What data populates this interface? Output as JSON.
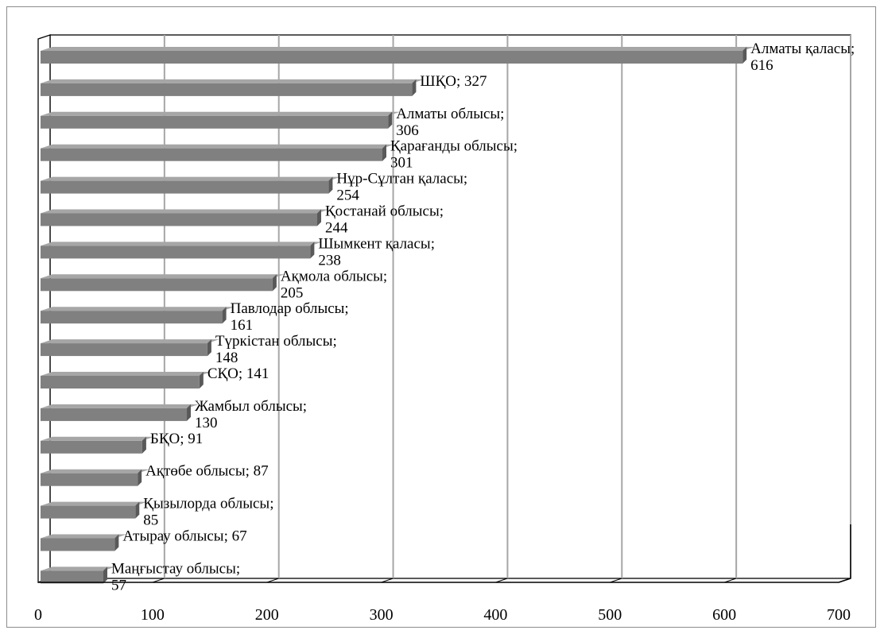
{
  "chart_data": {
    "type": "bar",
    "orientation": "horizontal",
    "style": "3d",
    "categories": [
      "Алматы қаласы",
      "ШҚО",
      "Алматы облысы",
      "Қарағанды облысы",
      "Нұр-Сұлтан қаласы",
      "Қостанай облысы",
      "Шымкент қаласы",
      "Ақмола облысы",
      "Павлодар облысы",
      "Түркістан облысы",
      "СҚО",
      "Жамбыл облысы",
      "БҚО",
      "Ақтөбе облысы",
      "Қызылорда облысы",
      "Атырау облысы",
      "Маңғыстау облысы"
    ],
    "values": [
      616,
      327,
      306,
      301,
      254,
      244,
      238,
      205,
      161,
      148,
      141,
      130,
      91,
      87,
      85,
      67,
      57
    ],
    "data_labels": [
      [
        "Алматы қаласы;",
        "616"
      ],
      [
        "ШҚО; 327"
      ],
      [
        "Алматы облысы;",
        "306"
      ],
      [
        "Қарағанды облысы;",
        "301"
      ],
      [
        "Нұр-Сұлтан қаласы;",
        "254"
      ],
      [
        "Қостанай облысы;",
        "244"
      ],
      [
        "Шымкент қаласы;",
        "238"
      ],
      [
        "Ақмола облысы;",
        "205"
      ],
      [
        "Павлодар облысы;",
        "161"
      ],
      [
        "Түркістан облысы;",
        "148"
      ],
      [
        "СҚО; 141"
      ],
      [
        "Жамбыл облысы;",
        "130"
      ],
      [
        "БҚО; 91"
      ],
      [
        "Ақтөбе облысы; 87"
      ],
      [
        "Қызылорда облысы;",
        "85"
      ],
      [
        "Атырау облысы; 67"
      ],
      [
        "Маңғыстау облысы;",
        "57"
      ]
    ],
    "xlim": [
      0,
      700
    ],
    "x_ticks": [
      0,
      100,
      200,
      300,
      400,
      500,
      600,
      700
    ],
    "x_tick_labels": [
      "0",
      "100",
      "200",
      "300",
      "400",
      "500",
      "600",
      "700"
    ],
    "title": "",
    "xlabel": "",
    "ylabel": "",
    "grid": "vertical",
    "legend": "none",
    "colors": {
      "bar_front": "#808080",
      "bar_top": "#a6a6a6",
      "bar_side": "#595959",
      "gridline": "#a6a6a6",
      "axis": "#000000",
      "frame": "#8c8c8c"
    }
  }
}
